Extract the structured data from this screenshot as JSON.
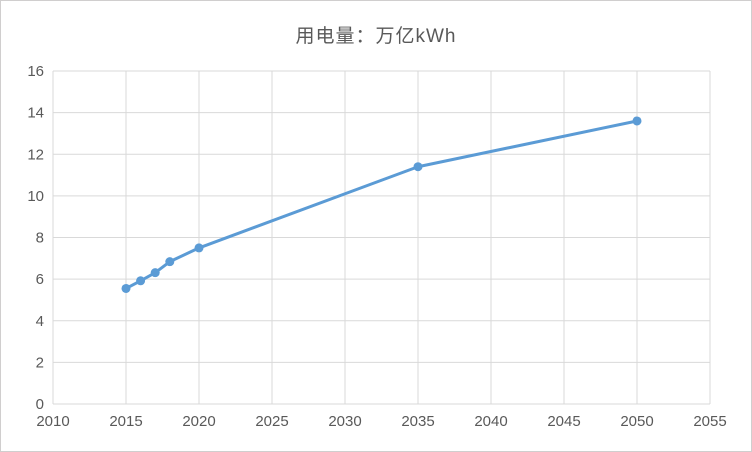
{
  "chart": {
    "title": "用电量：万亿kWh"
  },
  "chart_data": {
    "type": "line",
    "title": "用电量：万亿kWh",
    "series": [
      {
        "name": "用电量",
        "points": [
          {
            "x": 2015,
            "y": 5.55
          },
          {
            "x": 2016,
            "y": 5.92
          },
          {
            "x": 2017,
            "y": 6.31
          },
          {
            "x": 2018,
            "y": 6.84
          },
          {
            "x": 2020,
            "y": 7.5
          },
          {
            "x": 2035,
            "y": 11.4
          },
          {
            "x": 2050,
            "y": 13.6
          }
        ]
      }
    ],
    "xlabel": "",
    "ylabel": "",
    "xlim": [
      2010,
      2055
    ],
    "ylim": [
      0,
      16
    ],
    "xticks": [
      2010,
      2015,
      2020,
      2025,
      2030,
      2035,
      2040,
      2045,
      2050,
      2055
    ],
    "yticks": [
      0,
      2,
      4,
      6,
      8,
      10,
      12,
      14,
      16
    ],
    "grid": true,
    "legend": false,
    "colors": {
      "line": "#5B9BD5",
      "marker": "#5B9BD5",
      "grid": "#D9D9D9",
      "axis_text": "#595959",
      "title_text": "#595959",
      "border": "#D9D9D9",
      "background": "#FFFFFF"
    }
  }
}
